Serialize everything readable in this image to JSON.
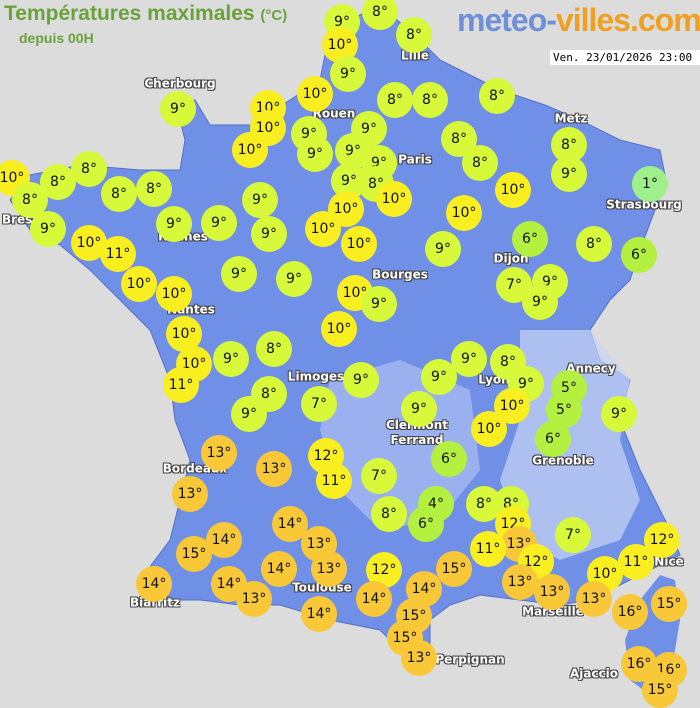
{
  "header": {
    "title": "Températures maximales",
    "unit": "(°C)",
    "subtitle": "depuis 00H",
    "logo": "meteo-villes.com",
    "datetime": "Ven. 23/01/2026 23:00"
  },
  "colors": {
    "background": "#dcdcdc",
    "land": "#7090e8",
    "cold": "#9ef08a",
    "cool": "#d8f83a",
    "mild": "#f8ee20",
    "warm": "#f8c838"
  },
  "cities": [
    "Cherbourg",
    "Brest",
    "Rennes",
    "Nantes",
    "Rouen",
    "Paris",
    "Lille",
    "Metz",
    "Strasbourg",
    "Dijon",
    "Bourges",
    "Limoges",
    "Lyon",
    "Annecy",
    "Clermont\nFerrand",
    "Grenoble",
    "Bordeaux",
    "Toulouse",
    "Biarritz",
    "Marseille",
    "Nice",
    "Perpignan",
    "Ajaccio"
  ],
  "temperatures": [
    9,
    8,
    10,
    8,
    9,
    10,
    10,
    10,
    10,
    9,
    9,
    9,
    9,
    9,
    8,
    9,
    10,
    10,
    8,
    8,
    8,
    8,
    8,
    10,
    8,
    9,
    1,
    9,
    10,
    8,
    8,
    8,
    8,
    8,
    9,
    10,
    11,
    9,
    9,
    9,
    9,
    10,
    10,
    10,
    9,
    6,
    8,
    6,
    10,
    10,
    9,
    9,
    10,
    9,
    7,
    9,
    9,
    10,
    10,
    10,
    11,
    9,
    8,
    9,
    8,
    9,
    10,
    5,
    5,
    9,
    8,
    9,
    7,
    9,
    9,
    9,
    10,
    6,
    13,
    13,
    12,
    11,
    7,
    6,
    13,
    8,
    4,
    6,
    8,
    8,
    12,
    13,
    11,
    7,
    14,
    14,
    15,
    13,
    12,
    13,
    13,
    10,
    12,
    11,
    14,
    14,
    14,
    13,
    12,
    15,
    13,
    14,
    14,
    13,
    16,
    15,
    14,
    15,
    15,
    13,
    16,
    16,
    15
  ],
  "degree_suffix": "°"
}
